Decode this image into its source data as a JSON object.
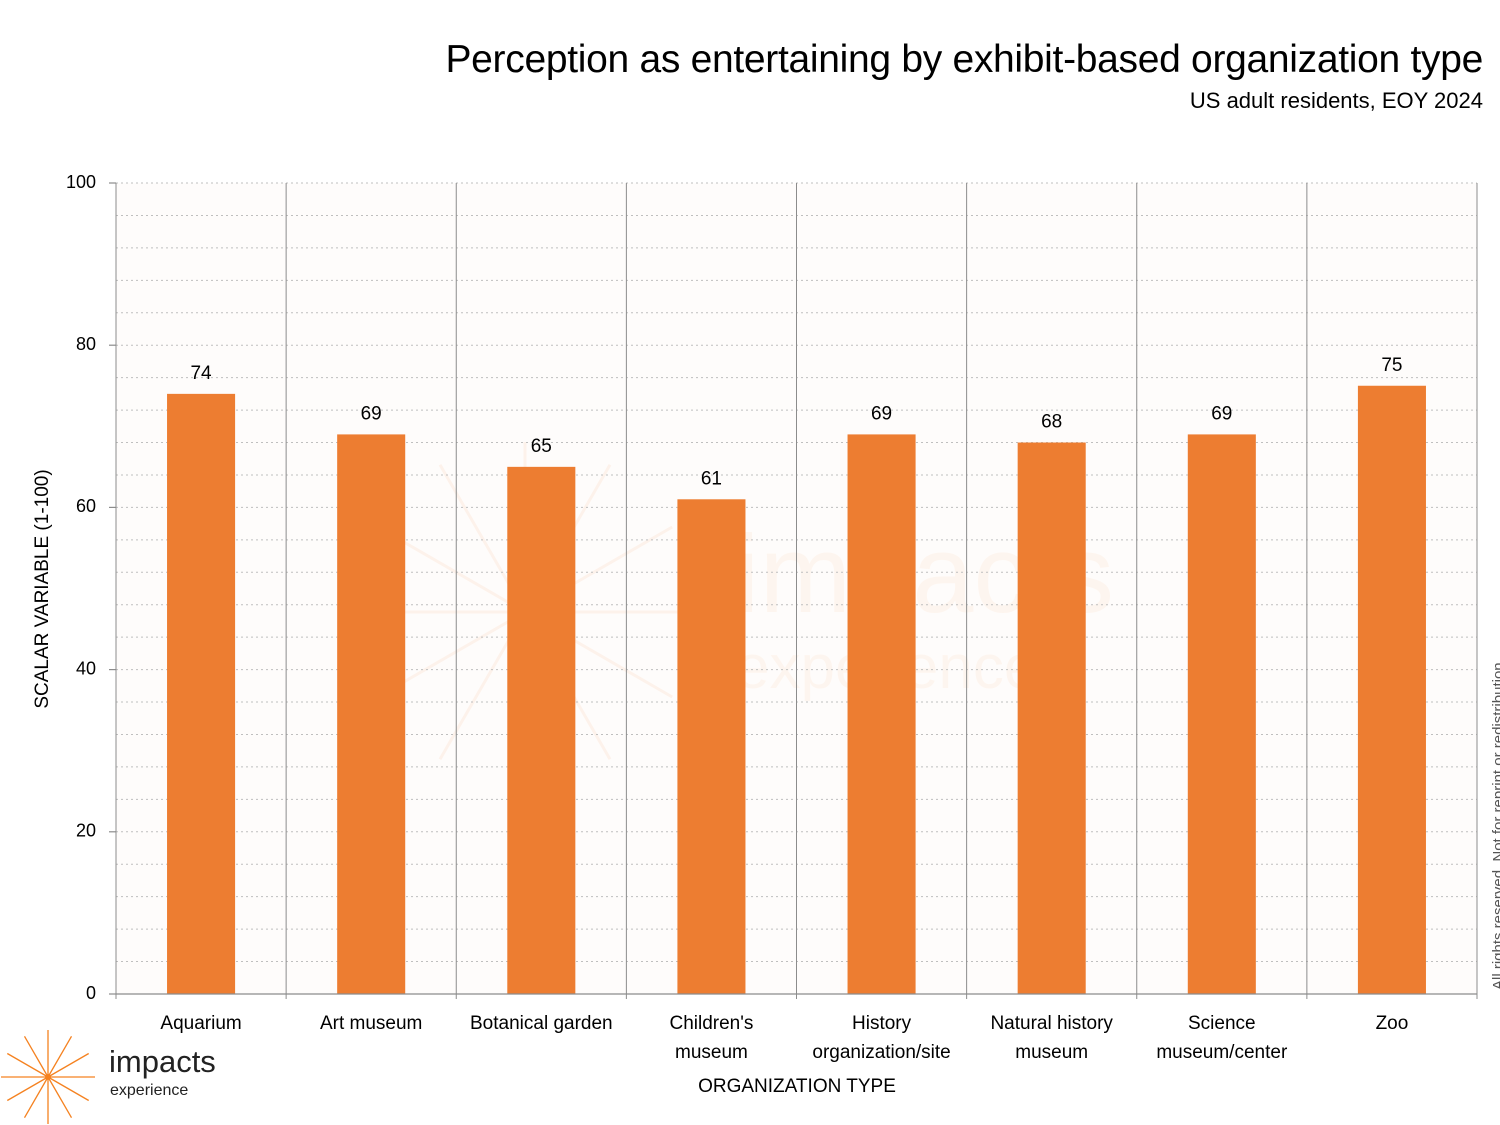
{
  "title": "Perception as entertaining by exhibit-based organization type",
  "subtitle": "US adult residents, EOY 2024",
  "copyright": "All rights reserved. Not for reprint or redistribution.",
  "logo": {
    "name": "impacts",
    "sub": "experience",
    "icon": "starburst-icon"
  },
  "watermark": {
    "name": "impacts",
    "sub": "experience"
  },
  "colors": {
    "bar": "#ED7D31",
    "plot_bg": "#FEFBFA",
    "grid": "#BFBFBF",
    "separator": "#8C8C8C",
    "logo": "#F58220"
  },
  "chart_data": {
    "type": "bar",
    "title": "Perception as entertaining by exhibit-based organization type",
    "subtitle": "US adult residents, EOY 2024",
    "xlabel": "ORGANIZATION TYPE",
    "ylabel": "SCALAR VARIABLE (1-100)",
    "ylim": [
      0,
      100
    ],
    "yticks": [
      0,
      20,
      40,
      60,
      80,
      100
    ],
    "minor_grid_step": 4,
    "grid": true,
    "legend": "none",
    "categories": [
      [
        "Aquarium"
      ],
      [
        "Art museum"
      ],
      [
        "Botanical garden"
      ],
      [
        "Children's",
        "museum"
      ],
      [
        "History",
        "organization/site"
      ],
      [
        "Natural history",
        "museum"
      ],
      [
        "Science",
        "museum/center"
      ],
      [
        "Zoo"
      ]
    ],
    "values": [
      74,
      69,
      65,
      61,
      69,
      68,
      69,
      75
    ],
    "data_labels": [
      "74",
      "69",
      "65",
      "61",
      "69",
      "68",
      "69",
      "75"
    ]
  }
}
